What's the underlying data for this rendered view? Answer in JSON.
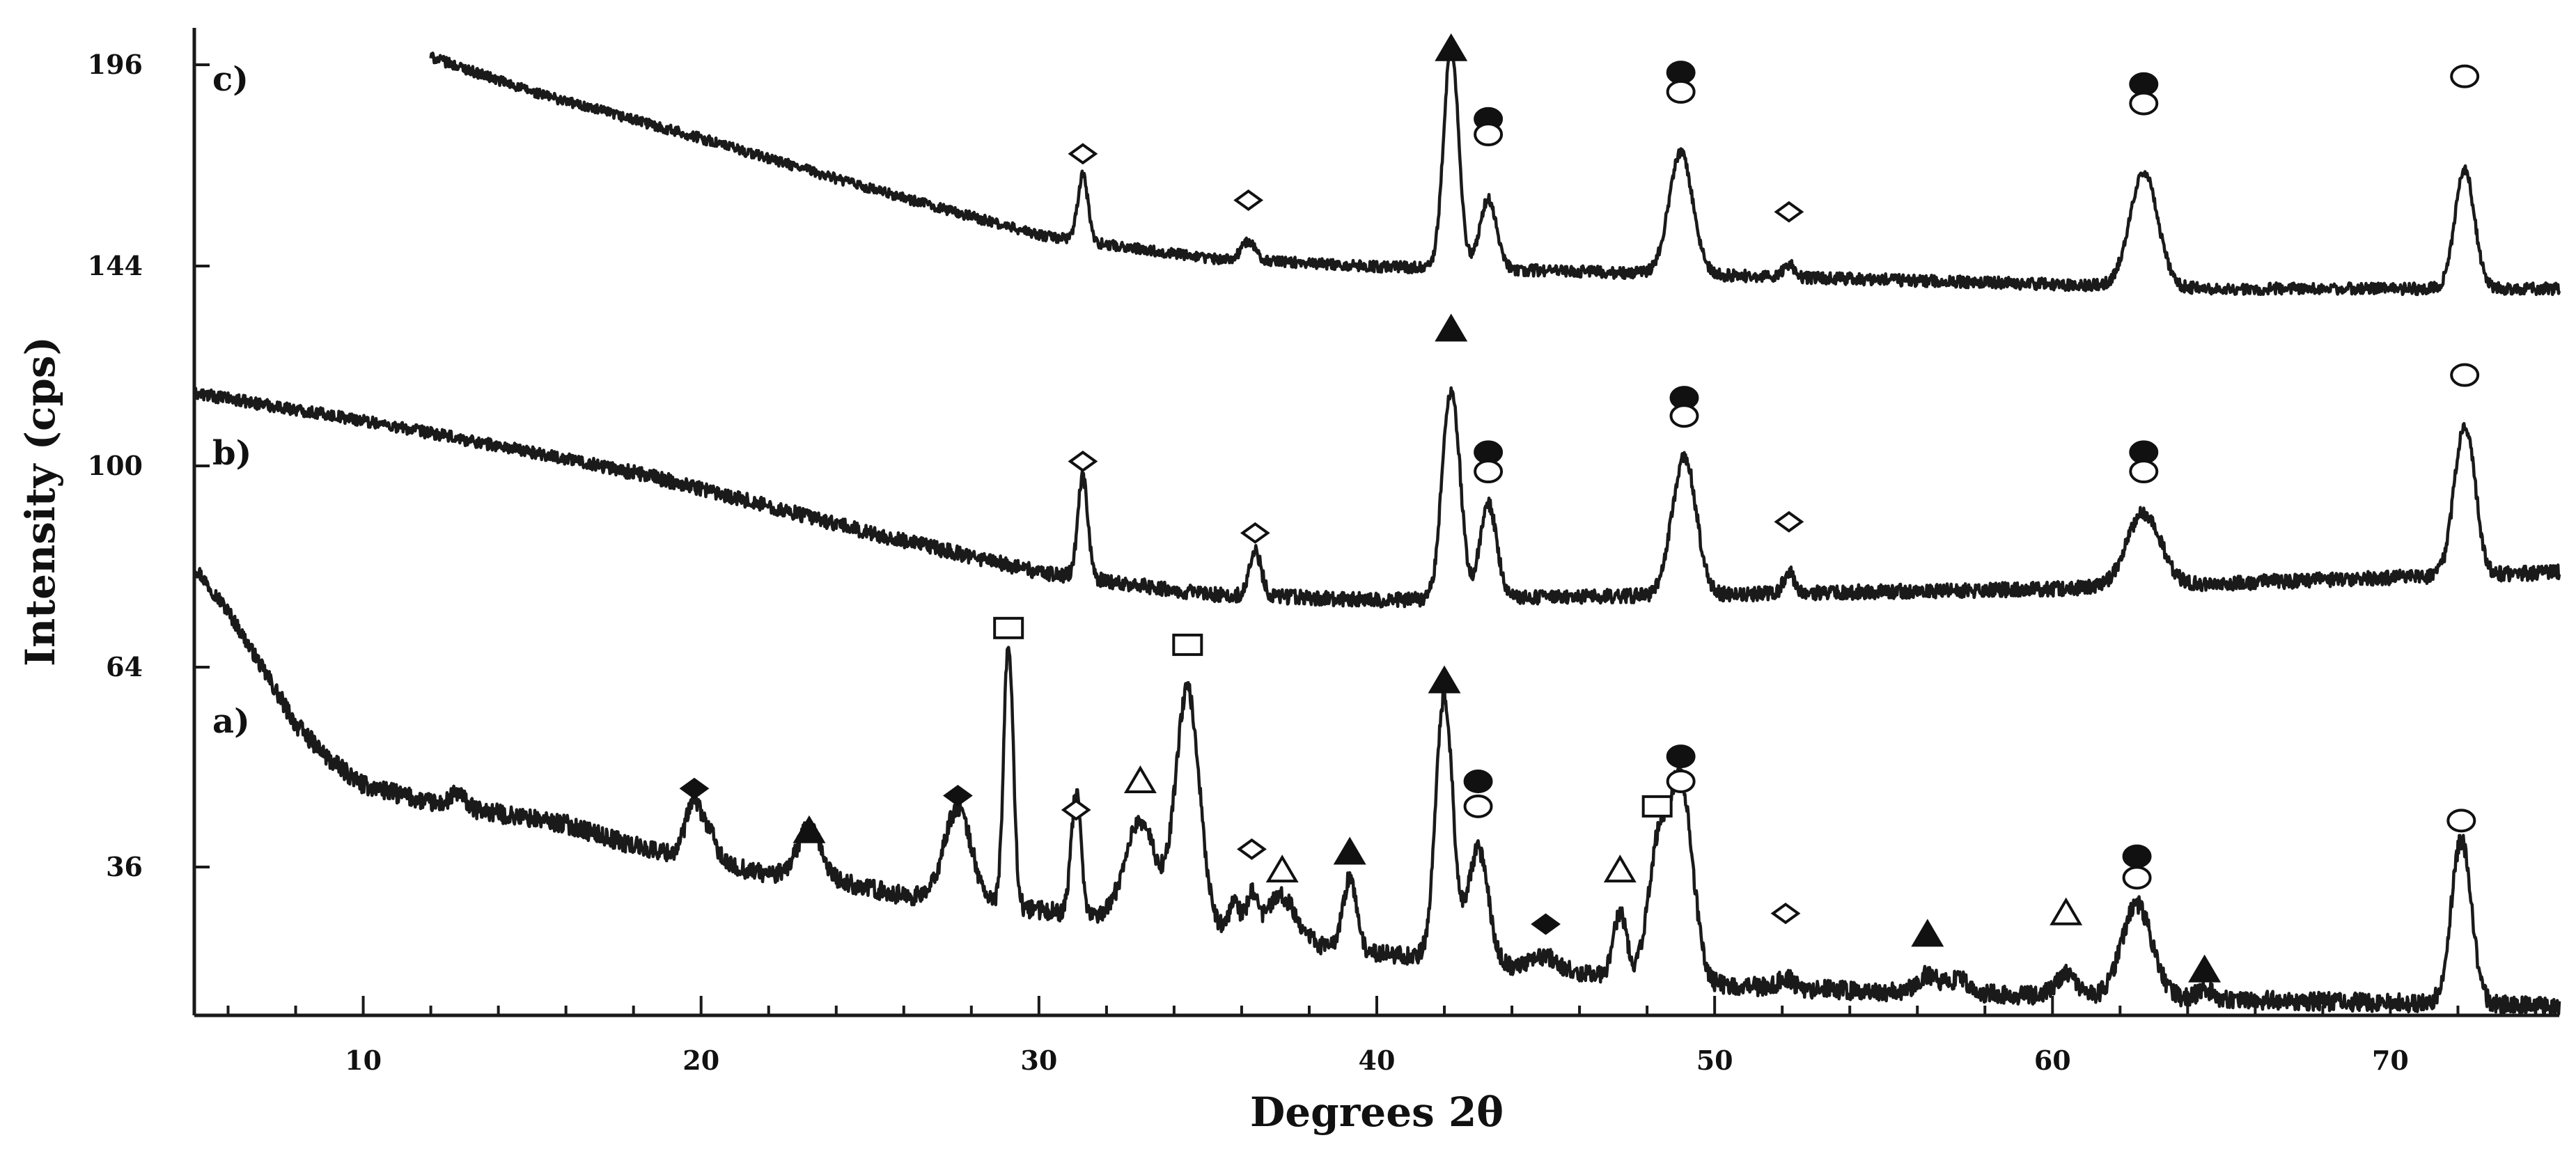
{
  "chart_data": {
    "type": "line",
    "xlabel": "Degrees 2θ",
    "ylabel": "Intensity (cps)",
    "xlim": [
      5,
      75
    ],
    "ylim": [
      16,
      200
    ],
    "x_ticks": [
      10,
      20,
      30,
      40,
      50,
      60,
      70
    ],
    "y_ticks": [
      36,
      64,
      100,
      144,
      196
    ],
    "grid": false,
    "legend": "none",
    "line_color": "#1a1a1a",
    "series": [
      {
        "name": "a)",
        "baseline_points": [
          [
            5,
            82
          ],
          [
            6,
            74
          ],
          [
            7,
            64
          ],
          [
            8,
            56
          ],
          [
            9,
            51
          ],
          [
            10,
            47.5
          ],
          [
            12,
            45
          ],
          [
            14,
            43.5
          ],
          [
            16,
            42
          ],
          [
            18,
            39
          ],
          [
            20,
            37
          ],
          [
            22,
            35
          ],
          [
            24,
            34
          ],
          [
            26,
            32
          ],
          [
            28,
            31
          ],
          [
            30,
            30
          ],
          [
            32,
            29
          ],
          [
            34,
            28
          ],
          [
            36,
            27
          ],
          [
            38,
            25
          ],
          [
            40,
            24
          ],
          [
            42,
            23
          ],
          [
            44,
            22
          ],
          [
            46,
            21
          ],
          [
            48,
            20
          ],
          [
            50,
            19.5
          ],
          [
            55,
            18.5
          ],
          [
            60,
            18
          ],
          [
            65,
            17.5
          ],
          [
            70,
            17
          ],
          [
            75,
            16.5
          ]
        ],
        "peaks": [
          [
            12.8,
            2.0,
            0.2
          ],
          [
            19.8,
            8,
            0.25
          ],
          [
            20.3,
            3,
            0.2
          ],
          [
            23.2,
            7,
            0.35
          ],
          [
            27.6,
            13,
            0.4
          ],
          [
            29.1,
            37,
            0.14
          ],
          [
            31.1,
            17,
            0.14
          ],
          [
            33.0,
            14,
            0.45
          ],
          [
            34.4,
            33,
            0.35
          ],
          [
            35.8,
            4,
            0.15
          ],
          [
            36.3,
            5,
            0.15
          ],
          [
            37.2,
            6,
            0.45
          ],
          [
            39.2,
            10,
            0.2
          ],
          [
            42.0,
            37,
            0.25
          ],
          [
            43.0,
            16,
            0.3
          ],
          [
            45.0,
            2,
            0.4
          ],
          [
            47.2,
            9,
            0.2
          ],
          [
            48.3,
            17,
            0.3
          ],
          [
            49.0,
            28,
            0.35
          ],
          [
            52.1,
            1.5,
            0.2
          ],
          [
            56.3,
            2.5,
            0.3
          ],
          [
            57.2,
            2,
            0.3
          ],
          [
            60.4,
            3,
            0.3
          ],
          [
            62.5,
            13,
            0.45
          ],
          [
            64.5,
            1.5,
            0.2
          ],
          [
            72.1,
            23,
            0.3
          ]
        ]
      },
      {
        "name": "b)",
        "baseline_points": [
          [
            5,
            116
          ],
          [
            10,
            110
          ],
          [
            15,
            103
          ],
          [
            20,
            96
          ],
          [
            25,
            88
          ],
          [
            30,
            81
          ],
          [
            35,
            77
          ],
          [
            40,
            76
          ],
          [
            45,
            76.5
          ],
          [
            50,
            77
          ],
          [
            55,
            77.5
          ],
          [
            60,
            78
          ],
          [
            65,
            79
          ],
          [
            70,
            80
          ],
          [
            75,
            81
          ]
        ],
        "peaks": [
          [
            31.3,
            18,
            0.15
          ],
          [
            36.4,
            8,
            0.18
          ],
          [
            42.2,
            40,
            0.25
          ],
          [
            43.3,
            17,
            0.25
          ],
          [
            49.1,
            25,
            0.35
          ],
          [
            52.2,
            4,
            0.15
          ],
          [
            62.7,
            13,
            0.5
          ],
          [
            72.2,
            28,
            0.3
          ]
        ]
      },
      {
        "name": "c)",
        "baseline_points": [
          [
            12,
            198
          ],
          [
            15,
            189
          ],
          [
            20,
            177
          ],
          [
            25,
            164
          ],
          [
            30,
            152
          ],
          [
            35,
            146
          ],
          [
            40,
            144
          ],
          [
            45,
            143
          ],
          [
            50,
            142
          ],
          [
            55,
            141
          ],
          [
            60,
            140
          ],
          [
            65,
            139
          ],
          [
            70,
            139
          ],
          [
            75,
            139
          ]
        ],
        "peaks": [
          [
            31.3,
            17,
            0.15
          ],
          [
            36.2,
            5,
            0.2
          ],
          [
            42.2,
            57,
            0.22
          ],
          [
            43.3,
            18,
            0.25
          ],
          [
            49.0,
            31,
            0.35
          ],
          [
            52.2,
            3,
            0.15
          ],
          [
            62.7,
            29,
            0.4
          ],
          [
            72.2,
            30,
            0.28
          ]
        ]
      }
    ],
    "markers": [
      {
        "trace": "c)",
        "x": 42.2,
        "y": 200,
        "shape": "filled-triangle"
      },
      {
        "trace": "c)",
        "x": 31.3,
        "y": 173,
        "shape": "open-diamond"
      },
      {
        "trace": "c)",
        "x": 36.2,
        "y": 161,
        "shape": "open-diamond"
      },
      {
        "trace": "c)",
        "x": 43.3,
        "y": 182,
        "shape": "filled-circle"
      },
      {
        "trace": "c)",
        "x": 43.3,
        "y": 178,
        "shape": "open-circle"
      },
      {
        "trace": "c)",
        "x": 49.0,
        "y": 194,
        "shape": "filled-circle"
      },
      {
        "trace": "c)",
        "x": 49.0,
        "y": 189,
        "shape": "open-circle"
      },
      {
        "trace": "c)",
        "x": 52.2,
        "y": 158,
        "shape": "open-diamond"
      },
      {
        "trace": "c)",
        "x": 62.7,
        "y": 191,
        "shape": "filled-circle"
      },
      {
        "trace": "c)",
        "x": 62.7,
        "y": 186,
        "shape": "open-circle"
      },
      {
        "trace": "c)",
        "x": 72.2,
        "y": 193,
        "shape": "open-circle"
      },
      {
        "trace": "b)",
        "x": 42.2,
        "y": 130,
        "shape": "filled-triangle"
      },
      {
        "trace": "b)",
        "x": 31.3,
        "y": 101,
        "shape": "open-diamond"
      },
      {
        "trace": "b)",
        "x": 36.4,
        "y": 88,
        "shape": "open-diamond"
      },
      {
        "trace": "b)",
        "x": 43.3,
        "y": 103,
        "shape": "filled-circle"
      },
      {
        "trace": "b)",
        "x": 43.3,
        "y": 99,
        "shape": "open-circle"
      },
      {
        "trace": "b)",
        "x": 49.1,
        "y": 115,
        "shape": "filled-circle"
      },
      {
        "trace": "b)",
        "x": 49.1,
        "y": 111,
        "shape": "open-circle"
      },
      {
        "trace": "b)",
        "x": 52.2,
        "y": 90,
        "shape": "open-diamond"
      },
      {
        "trace": "b)",
        "x": 62.7,
        "y": 103,
        "shape": "filled-circle"
      },
      {
        "trace": "b)",
        "x": 62.7,
        "y": 99,
        "shape": "open-circle"
      },
      {
        "trace": "b)",
        "x": 72.2,
        "y": 120,
        "shape": "open-circle"
      },
      {
        "trace": "a)",
        "x": 19.8,
        "y": 47,
        "shape": "filled-diamond"
      },
      {
        "trace": "a)",
        "x": 23.2,
        "y": 41,
        "shape": "filled-triangle"
      },
      {
        "trace": "a)",
        "x": 27.6,
        "y": 46,
        "shape": "filled-diamond"
      },
      {
        "trace": "a)",
        "x": 29.1,
        "y": 71,
        "shape": "open-square"
      },
      {
        "trace": "a)",
        "x": 31.1,
        "y": 44,
        "shape": "open-diamond"
      },
      {
        "trace": "a)",
        "x": 33.0,
        "y": 48,
        "shape": "open-triangle"
      },
      {
        "trace": "a)",
        "x": 34.4,
        "y": 68,
        "shape": "open-square"
      },
      {
        "trace": "a)",
        "x": 36.3,
        "y": 38.5,
        "shape": "open-diamond"
      },
      {
        "trace": "a)",
        "x": 37.2,
        "y": 35.5,
        "shape": "open-triangle"
      },
      {
        "trace": "a)",
        "x": 39.2,
        "y": 38,
        "shape": "filled-triangle"
      },
      {
        "trace": "a)",
        "x": 42.0,
        "y": 62,
        "shape": "filled-triangle"
      },
      {
        "trace": "a)",
        "x": 43.0,
        "y": 48,
        "shape": "filled-circle"
      },
      {
        "trace": "a)",
        "x": 43.0,
        "y": 44.5,
        "shape": "open-circle"
      },
      {
        "trace": "a)",
        "x": 45.0,
        "y": 28,
        "shape": "filled-diamond"
      },
      {
        "trace": "a)",
        "x": 47.2,
        "y": 35.5,
        "shape": "open-triangle"
      },
      {
        "trace": "a)",
        "x": 48.3,
        "y": 44.5,
        "shape": "open-square"
      },
      {
        "trace": "a)",
        "x": 49.0,
        "y": 51.5,
        "shape": "filled-circle"
      },
      {
        "trace": "a)",
        "x": 49.0,
        "y": 48,
        "shape": "open-circle"
      },
      {
        "trace": "a)",
        "x": 52.1,
        "y": 29.5,
        "shape": "open-diamond"
      },
      {
        "trace": "a)",
        "x": 56.3,
        "y": 26.5,
        "shape": "filled-triangle"
      },
      {
        "trace": "a)",
        "x": 60.4,
        "y": 29.5,
        "shape": "open-triangle"
      },
      {
        "trace": "a)",
        "x": 62.5,
        "y": 37.5,
        "shape": "filled-circle"
      },
      {
        "trace": "a)",
        "x": 62.5,
        "y": 34.5,
        "shape": "open-circle"
      },
      {
        "trace": "a)",
        "x": 64.5,
        "y": 21.5,
        "shape": "filled-triangle"
      },
      {
        "trace": "a)",
        "x": 72.1,
        "y": 42.5,
        "shape": "open-circle"
      }
    ]
  }
}
